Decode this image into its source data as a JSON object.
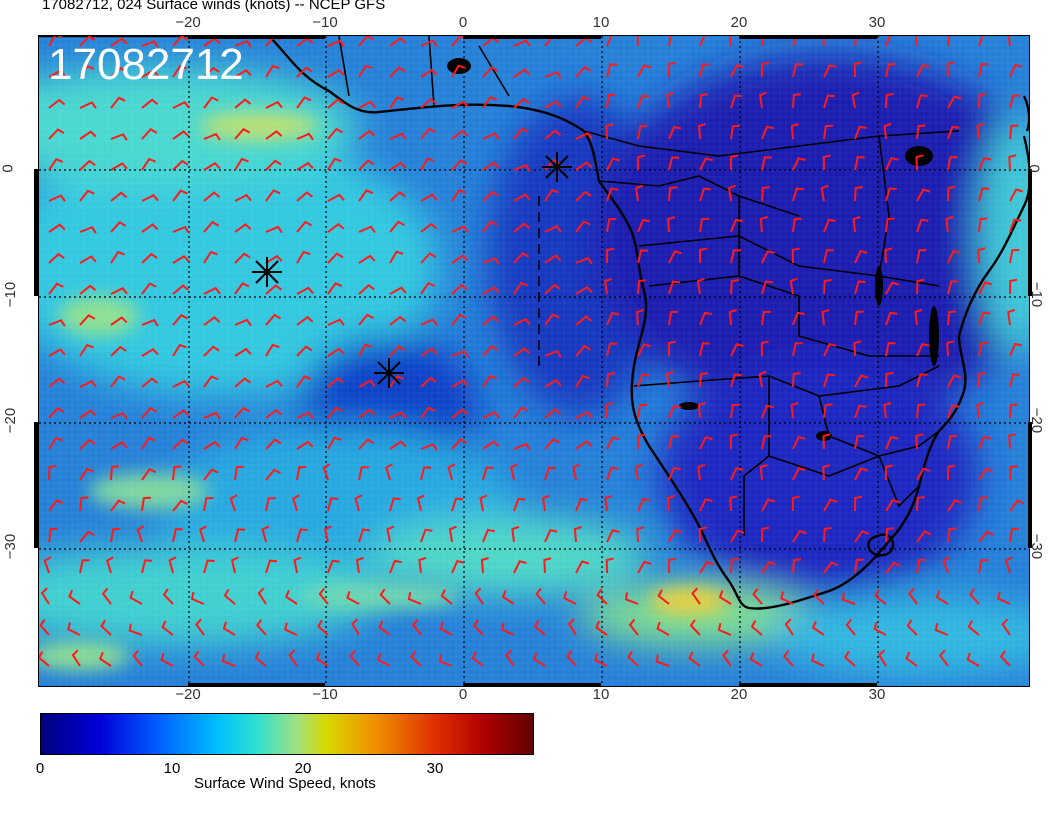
{
  "title": "17082712, 024 Surface winds (knots) -- NCEP GFS",
  "stamp": "17082712",
  "axes": {
    "lon_ticks": [
      "−20",
      "−10",
      "0",
      "10",
      "20",
      "30"
    ],
    "lat_ticks": [
      "0",
      "−10",
      "−20",
      "−30"
    ]
  },
  "colorbar": {
    "label": "Surface Wind Speed, knots",
    "ticks": [
      "0",
      "10",
      "20",
      "30"
    ]
  },
  "colors": {
    "barb": "#ff1a1a",
    "land_base": "#1a2ac8",
    "ocean_base": "#2a8ad8"
  }
}
